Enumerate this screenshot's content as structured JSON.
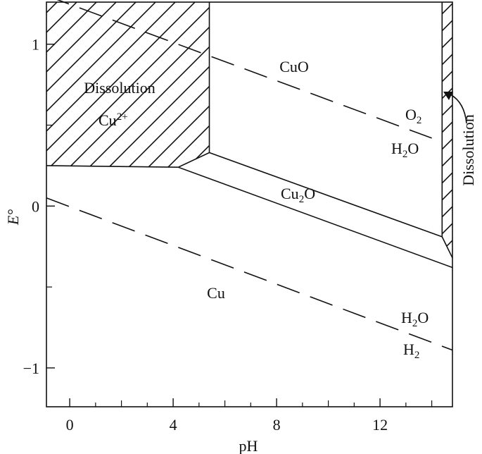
{
  "chart_data": {
    "type": "phase-diagram",
    "xlabel": "pH",
    "ylabel": "E°",
    "xlim": [
      -0.9,
      14.8
    ],
    "ylim": [
      -1.24,
      1.26
    ],
    "x_ticks": [
      0,
      4,
      8,
      12
    ],
    "y_ticks": [
      -1,
      0,
      1
    ],
    "x_tick_labels": [
      "0",
      "4",
      "8",
      "12"
    ],
    "y_tick_labels": [
      "−1",
      "0",
      "1"
    ],
    "boundaries": [
      {
        "name": "cu2plus-cu",
        "points": [
          [
            -0.9,
            0.25
          ],
          [
            4.2,
            0.24
          ]
        ]
      },
      {
        "name": "cu2plus-cuo",
        "points": [
          [
            5.4,
            1.26
          ],
          [
            5.4,
            0.33
          ]
        ]
      },
      {
        "name": "cuo-cu2o",
        "points": [
          [
            4.2,
            0.24
          ],
          [
            5.4,
            0.33
          ],
          [
            14.4,
            -0.19
          ]
        ]
      },
      {
        "name": "cu2o-cu",
        "points": [
          [
            4.2,
            0.24
          ],
          [
            14.8,
            -0.38
          ]
        ]
      },
      {
        "name": "cuo-dissolution",
        "points": [
          [
            14.4,
            1.26
          ],
          [
            14.4,
            -0.19
          ]
        ]
      },
      {
        "name": "cu2o-dissolution",
        "points": [
          [
            14.4,
            -0.19
          ],
          [
            14.8,
            -0.32
          ]
        ]
      }
    ],
    "hatched_regions": [
      {
        "name": "cu2plus-region",
        "polygon": [
          [
            -0.9,
            1.26
          ],
          [
            5.4,
            1.26
          ],
          [
            5.4,
            0.33
          ],
          [
            4.2,
            0.24
          ],
          [
            -0.9,
            0.25
          ]
        ]
      },
      {
        "name": "high-ph-dissolution-region",
        "polygon": [
          [
            14.4,
            1.26
          ],
          [
            14.8,
            1.26
          ],
          [
            14.8,
            -0.32
          ],
          [
            14.4,
            -0.19
          ]
        ]
      }
    ],
    "dashed_lines": [
      {
        "name": "o2-h2o",
        "points": [
          [
            -0.9,
            1.3
          ],
          [
            14,
            0.42
          ]
        ]
      },
      {
        "name": "h2o-h2",
        "points": [
          [
            -0.9,
            0.05
          ],
          [
            14.8,
            -0.89
          ]
        ]
      }
    ],
    "region_labels": {
      "dissolution_left": "Dissolution",
      "cu2plus_base": "Cu",
      "cu2plus_sup": "2+",
      "cuo": "CuO",
      "cu2o_a": "Cu",
      "cu2o_sub": "2",
      "cu2o_b": "O",
      "cu": "Cu",
      "o2_a": "O",
      "o2_sub": "2",
      "h2o_top_a": "H",
      "h2o_top_sub": "2",
      "h2o_top_b": "O",
      "h2o_bot_a": "H",
      "h2o_bot_sub": "2",
      "h2o_bot_b": "O",
      "h2_a": "H",
      "h2_sub": "2",
      "dissolution_right": "Dissolution"
    }
  }
}
